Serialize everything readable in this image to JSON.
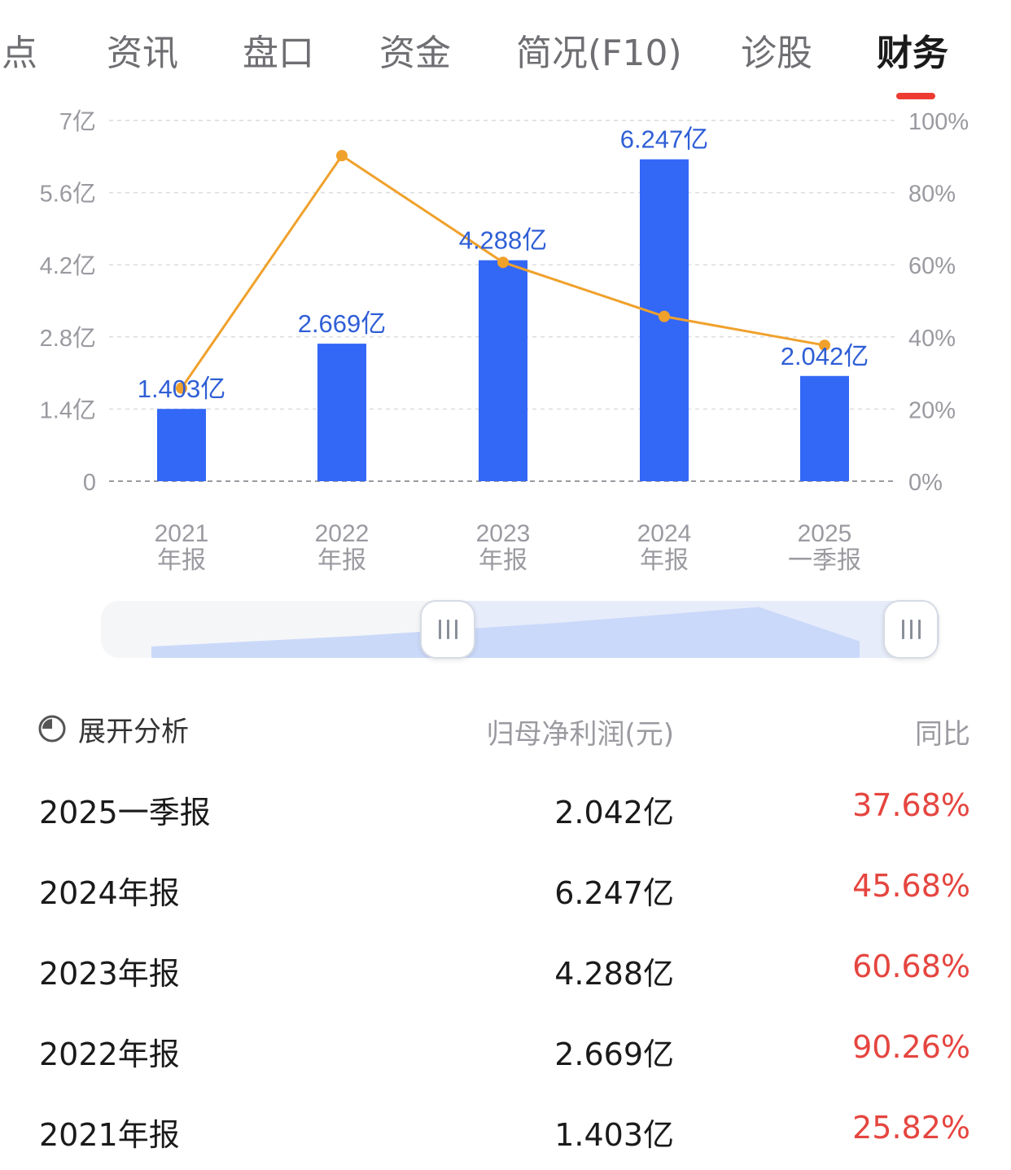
{
  "tabs": [
    {
      "label": "看点",
      "active": false
    },
    {
      "label": "资讯",
      "active": false
    },
    {
      "label": "盘口",
      "active": false
    },
    {
      "label": "资金",
      "active": false
    },
    {
      "label": "简况(F10)",
      "active": false
    },
    {
      "label": "诊股",
      "active": false
    },
    {
      "label": "财务",
      "active": true
    }
  ],
  "colors": {
    "bar": "#3367f6",
    "line": "#f0a12c",
    "bar_label": "#2f5fd6",
    "positive": "#e5453f",
    "tab_indicator": "#ee3b32"
  },
  "chart_data": {
    "type": "bar+line",
    "categories": [
      {
        "year": "2021",
        "period": "年报"
      },
      {
        "year": "2022",
        "period": "年报"
      },
      {
        "year": "2023",
        "period": "年报"
      },
      {
        "year": "2024",
        "period": "年报"
      },
      {
        "year": "2025",
        "period": "一季报"
      }
    ],
    "series": [
      {
        "name": "归母净利润(元)",
        "type": "bar",
        "axis": "left",
        "values": [
          1.403,
          2.669,
          4.288,
          6.247,
          2.042
        ],
        "labels": [
          "1.403亿",
          "2.669亿",
          "4.288亿",
          "6.247亿",
          "2.042亿"
        ]
      },
      {
        "name": "同比",
        "type": "line",
        "axis": "right",
        "values": [
          25.82,
          90.26,
          60.68,
          45.68,
          37.68
        ]
      }
    ],
    "left_axis": {
      "ticks": [
        "0",
        "1.4亿",
        "2.8亿",
        "4.2亿",
        "5.6亿",
        "7亿"
      ],
      "min": 0,
      "max": 7
    },
    "right_axis": {
      "ticks": [
        "0%",
        "20%",
        "40%",
        "60%",
        "80%",
        "100%"
      ],
      "min": 0,
      "max": 100
    },
    "grid": true
  },
  "table": {
    "analysis_label": "展开分析",
    "headers": {
      "profit": "归母净利润(元)",
      "yoy": "同比"
    },
    "rows": [
      {
        "period": "2025一季报",
        "profit": "2.042亿",
        "yoy": "37.68%"
      },
      {
        "period": "2024年报",
        "profit": "6.247亿",
        "yoy": "45.68%"
      },
      {
        "period": "2023年报",
        "profit": "4.288亿",
        "yoy": "60.68%"
      },
      {
        "period": "2022年报",
        "profit": "2.669亿",
        "yoy": "90.26%"
      },
      {
        "period": "2021年报",
        "profit": "1.403亿",
        "yoy": "25.82%"
      }
    ]
  }
}
